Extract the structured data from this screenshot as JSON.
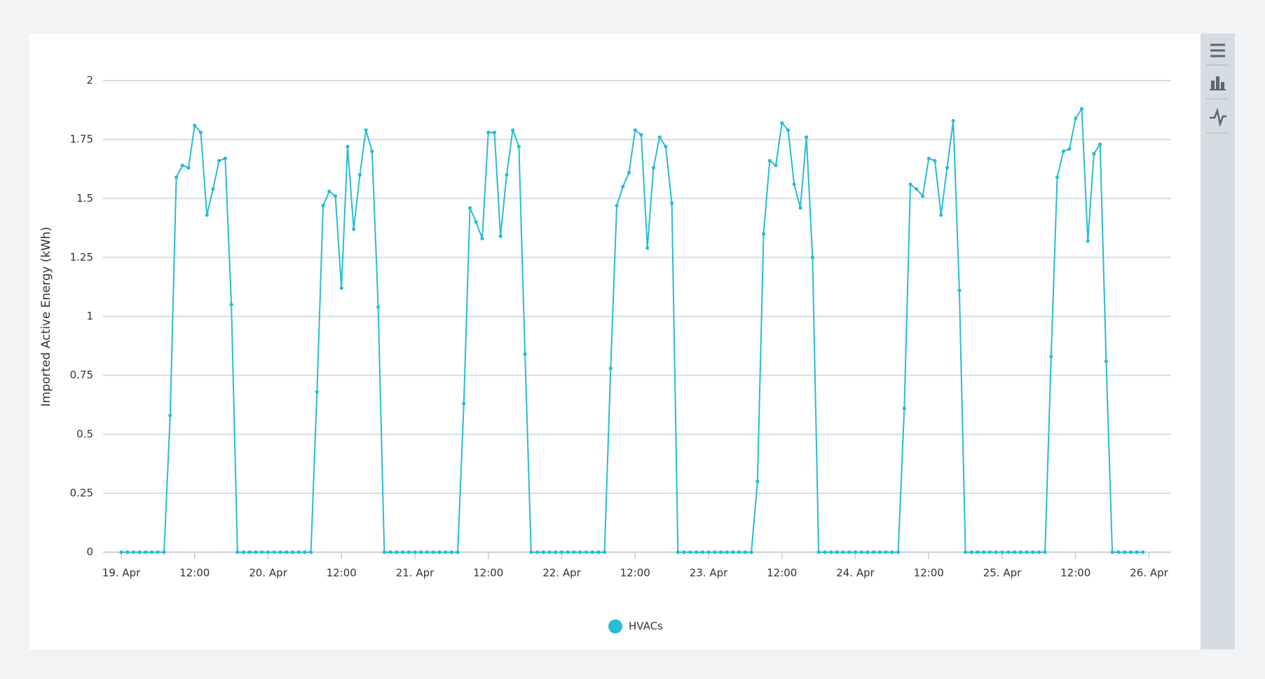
{
  "chart_data": {
    "type": "line",
    "y_label": "Imported Active Energy (kWh)",
    "x": [
      "19. Apr 00:00",
      "19. Apr 01:00",
      "19. Apr 02:00",
      "19. Apr 03:00",
      "19. Apr 04:00",
      "19. Apr 05:00",
      "19. Apr 06:00",
      "19. Apr 07:00",
      "19. Apr 08:00",
      "19. Apr 09:00",
      "19. Apr 10:00",
      "19. Apr 11:00",
      "19. Apr 12:00",
      "19. Apr 13:00",
      "19. Apr 14:00",
      "19. Apr 15:00",
      "19. Apr 16:00",
      "19. Apr 17:00",
      "19. Apr 18:00",
      "19. Apr 19:00",
      "19. Apr 20:00",
      "19. Apr 21:00",
      "19. Apr 22:00",
      "19. Apr 23:00",
      "20. Apr 00:00",
      "20. Apr 01:00",
      "20. Apr 02:00",
      "20. Apr 03:00",
      "20. Apr 04:00",
      "20. Apr 05:00",
      "20. Apr 06:00",
      "20. Apr 07:00",
      "20. Apr 08:00",
      "20. Apr 09:00",
      "20. Apr 10:00",
      "20. Apr 11:00",
      "20. Apr 12:00",
      "20. Apr 13:00",
      "20. Apr 14:00",
      "20. Apr 15:00",
      "20. Apr 16:00",
      "20. Apr 17:00",
      "20. Apr 18:00",
      "20. Apr 19:00",
      "20. Apr 20:00",
      "20. Apr 21:00",
      "20. Apr 22:00",
      "20. Apr 23:00",
      "21. Apr 00:00",
      "21. Apr 01:00",
      "21. Apr 02:00",
      "21. Apr 03:00",
      "21. Apr 04:00",
      "21. Apr 05:00",
      "21. Apr 06:00",
      "21. Apr 07:00",
      "21. Apr 08:00",
      "21. Apr 09:00",
      "21. Apr 10:00",
      "21. Apr 11:00",
      "21. Apr 12:00",
      "21. Apr 13:00",
      "21. Apr 14:00",
      "21. Apr 15:00",
      "21. Apr 16:00",
      "21. Apr 17:00",
      "21. Apr 18:00",
      "21. Apr 19:00",
      "21. Apr 20:00",
      "21. Apr 21:00",
      "21. Apr 22:00",
      "21. Apr 23:00",
      "22. Apr 00:00",
      "22. Apr 01:00",
      "22. Apr 02:00",
      "22. Apr 03:00",
      "22. Apr 04:00",
      "22. Apr 05:00",
      "22. Apr 06:00",
      "22. Apr 07:00",
      "22. Apr 08:00",
      "22. Apr 09:00",
      "22. Apr 10:00",
      "22. Apr 11:00",
      "22. Apr 12:00",
      "22. Apr 13:00",
      "22. Apr 14:00",
      "22. Apr 15:00",
      "22. Apr 16:00",
      "22. Apr 17:00",
      "22. Apr 18:00",
      "22. Apr 19:00",
      "22. Apr 20:00",
      "22. Apr 21:00",
      "22. Apr 22:00",
      "22. Apr 23:00",
      "23. Apr 00:00",
      "23. Apr 01:00",
      "23. Apr 02:00",
      "23. Apr 03:00",
      "23. Apr 04:00",
      "23. Apr 05:00",
      "23. Apr 06:00",
      "23. Apr 07:00",
      "23. Apr 08:00",
      "23. Apr 09:00",
      "23. Apr 10:00",
      "23. Apr 11:00",
      "23. Apr 12:00",
      "23. Apr 13:00",
      "23. Apr 14:00",
      "23. Apr 15:00",
      "23. Apr 16:00",
      "23. Apr 17:00",
      "23. Apr 18:00",
      "23. Apr 19:00",
      "23. Apr 20:00",
      "23. Apr 21:00",
      "23. Apr 22:00",
      "23. Apr 23:00",
      "24. Apr 00:00",
      "24. Apr 01:00",
      "24. Apr 02:00",
      "24. Apr 03:00",
      "24. Apr 04:00",
      "24. Apr 05:00",
      "24. Apr 06:00",
      "24. Apr 07:00",
      "24. Apr 08:00",
      "24. Apr 09:00",
      "24. Apr 10:00",
      "24. Apr 11:00",
      "24. Apr 12:00",
      "24. Apr 13:00",
      "24. Apr 14:00",
      "24. Apr 15:00",
      "24. Apr 16:00",
      "24. Apr 17:00",
      "24. Apr 18:00",
      "24. Apr 19:00",
      "24. Apr 20:00",
      "24. Apr 21:00",
      "24. Apr 22:00",
      "24. Apr 23:00",
      "25. Apr 00:00",
      "25. Apr 01:00",
      "25. Apr 02:00",
      "25. Apr 03:00",
      "25. Apr 04:00",
      "25. Apr 05:00",
      "25. Apr 06:00",
      "25. Apr 07:00",
      "25. Apr 08:00",
      "25. Apr 09:00",
      "25. Apr 10:00",
      "25. Apr 11:00",
      "25. Apr 12:00",
      "25. Apr 13:00",
      "25. Apr 14:00",
      "25. Apr 15:00",
      "25. Apr 16:00",
      "25. Apr 17:00",
      "25. Apr 18:00",
      "25. Apr 19:00",
      "25. Apr 20:00",
      "25. Apr 21:00",
      "25. Apr 22:00",
      "25. Apr 23:00"
    ],
    "series": [
      {
        "name": "HVACs",
        "color": "#29bcd4",
        "values": [
          0,
          0,
          0,
          0,
          0,
          0,
          0,
          0,
          0.58,
          1.59,
          1.64,
          1.63,
          1.81,
          1.78,
          1.43,
          1.54,
          1.66,
          1.67,
          1.05,
          0,
          0,
          0,
          0,
          0,
          0,
          0,
          0,
          0,
          0,
          0,
          0,
          0,
          0.68,
          1.47,
          1.53,
          1.51,
          1.12,
          1.72,
          1.37,
          1.6,
          1.79,
          1.7,
          1.04,
          0,
          0,
          0,
          0,
          0,
          0,
          0,
          0,
          0,
          0,
          0,
          0,
          0,
          0.63,
          1.46,
          1.4,
          1.33,
          1.78,
          1.78,
          1.34,
          1.6,
          1.79,
          1.72,
          0.84,
          0,
          0,
          0,
          0,
          0,
          0,
          0,
          0,
          0,
          0,
          0,
          0,
          0,
          0.78,
          1.47,
          1.55,
          1.61,
          1.79,
          1.77,
          1.29,
          1.63,
          1.76,
          1.72,
          1.48,
          0,
          0,
          0,
          0,
          0,
          0,
          0,
          0,
          0,
          0,
          0,
          0,
          0,
          0.3,
          1.35,
          1.66,
          1.64,
          1.82,
          1.79,
          1.56,
          1.46,
          1.76,
          1.25,
          0,
          0,
          0,
          0,
          0,
          0,
          0,
          0,
          0,
          0,
          0,
          0,
          0,
          0,
          0.61,
          1.56,
          1.54,
          1.51,
          1.67,
          1.66,
          1.43,
          1.63,
          1.83,
          1.11,
          0,
          0,
          0,
          0,
          0,
          0,
          0,
          0,
          0,
          0,
          0,
          0,
          0,
          0,
          0.83,
          1.59,
          1.7,
          1.71,
          1.84,
          1.88,
          1.32,
          1.69,
          1.73,
          0.81,
          0,
          0,
          0,
          0,
          0,
          0
        ]
      }
    ],
    "xticks": [
      {
        "value": "19. Apr 00:00",
        "label": "19. Apr"
      },
      {
        "value": "19. Apr 12:00",
        "label": "12:00"
      },
      {
        "value": "20. Apr 00:00",
        "label": "20. Apr"
      },
      {
        "value": "20. Apr 12:00",
        "label": "12:00"
      },
      {
        "value": "21. Apr 00:00",
        "label": "21. Apr"
      },
      {
        "value": "21. Apr 12:00",
        "label": "12:00"
      },
      {
        "value": "22. Apr 00:00",
        "label": "22. Apr"
      },
      {
        "value": "22. Apr 12:00",
        "label": "12:00"
      },
      {
        "value": "23. Apr 00:00",
        "label": "23. Apr"
      },
      {
        "value": "23. Apr 12:00",
        "label": "12:00"
      },
      {
        "value": "24. Apr 00:00",
        "label": "24. Apr"
      },
      {
        "value": "24. Apr 12:00",
        "label": "12:00"
      },
      {
        "value": "25. Apr 00:00",
        "label": "25. Apr"
      },
      {
        "value": "25. Apr 12:00",
        "label": "12:00"
      },
      {
        "value": "26. Apr 00:00",
        "label": "26. Apr"
      }
    ],
    "ylim": [
      0,
      2
    ],
    "yticks": [
      0,
      0.25,
      0.5,
      0.75,
      1,
      1.25,
      1.5,
      1.75,
      2
    ],
    "grid": true,
    "legend": "bottom"
  }
}
